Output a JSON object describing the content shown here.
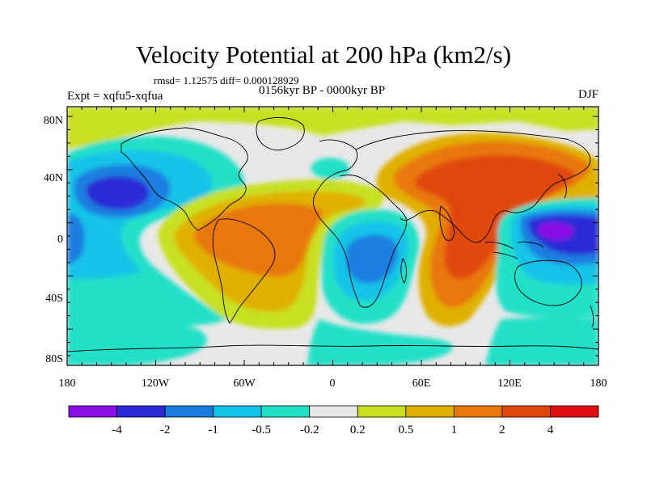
{
  "title": "Velocity Potential at 200 hPa (km2/s)",
  "stats_line": "rmsd= 1.12575  diff= 0.000128929",
  "experiment_label": "Expt = xqfu5-xqfua",
  "period_label": "0156kyr BP - 0000kyr BP",
  "season_label": "DJF",
  "lat_tick_labels": [
    "80N",
    "40N",
    "0",
    "40S",
    "80S"
  ],
  "lon_tick_labels": [
    "180",
    "120W",
    "60W",
    "0",
    "60E",
    "120E",
    "180"
  ],
  "colorbar_labels": [
    "-4",
    "-2",
    "-1",
    "-0.5",
    "-0.2",
    "0.2",
    "0.5",
    "1",
    "2",
    "4"
  ],
  "colorbar_colors": [
    "#8a10e6",
    "#2a2ad6",
    "#1a7ee0",
    "#12c3e8",
    "#20e0c8",
    "#e8e8e8",
    "#c8e020",
    "#e0b000",
    "#e8780a",
    "#e04808",
    "#e01010"
  ],
  "colors": {
    "pos_weak": "#c8e020",
    "pos_mid": "#e0b000",
    "pos_strong": "#e8780a",
    "pos_max": "#e04808",
    "neutral": "#e8e8e8",
    "neg_weak": "#20e0c8",
    "neg_mid": "#12c3e8",
    "neg_strong": "#1a7ee0",
    "neg_max": "#2a2ad6",
    "neg_extreme": "#8a10e6"
  }
}
